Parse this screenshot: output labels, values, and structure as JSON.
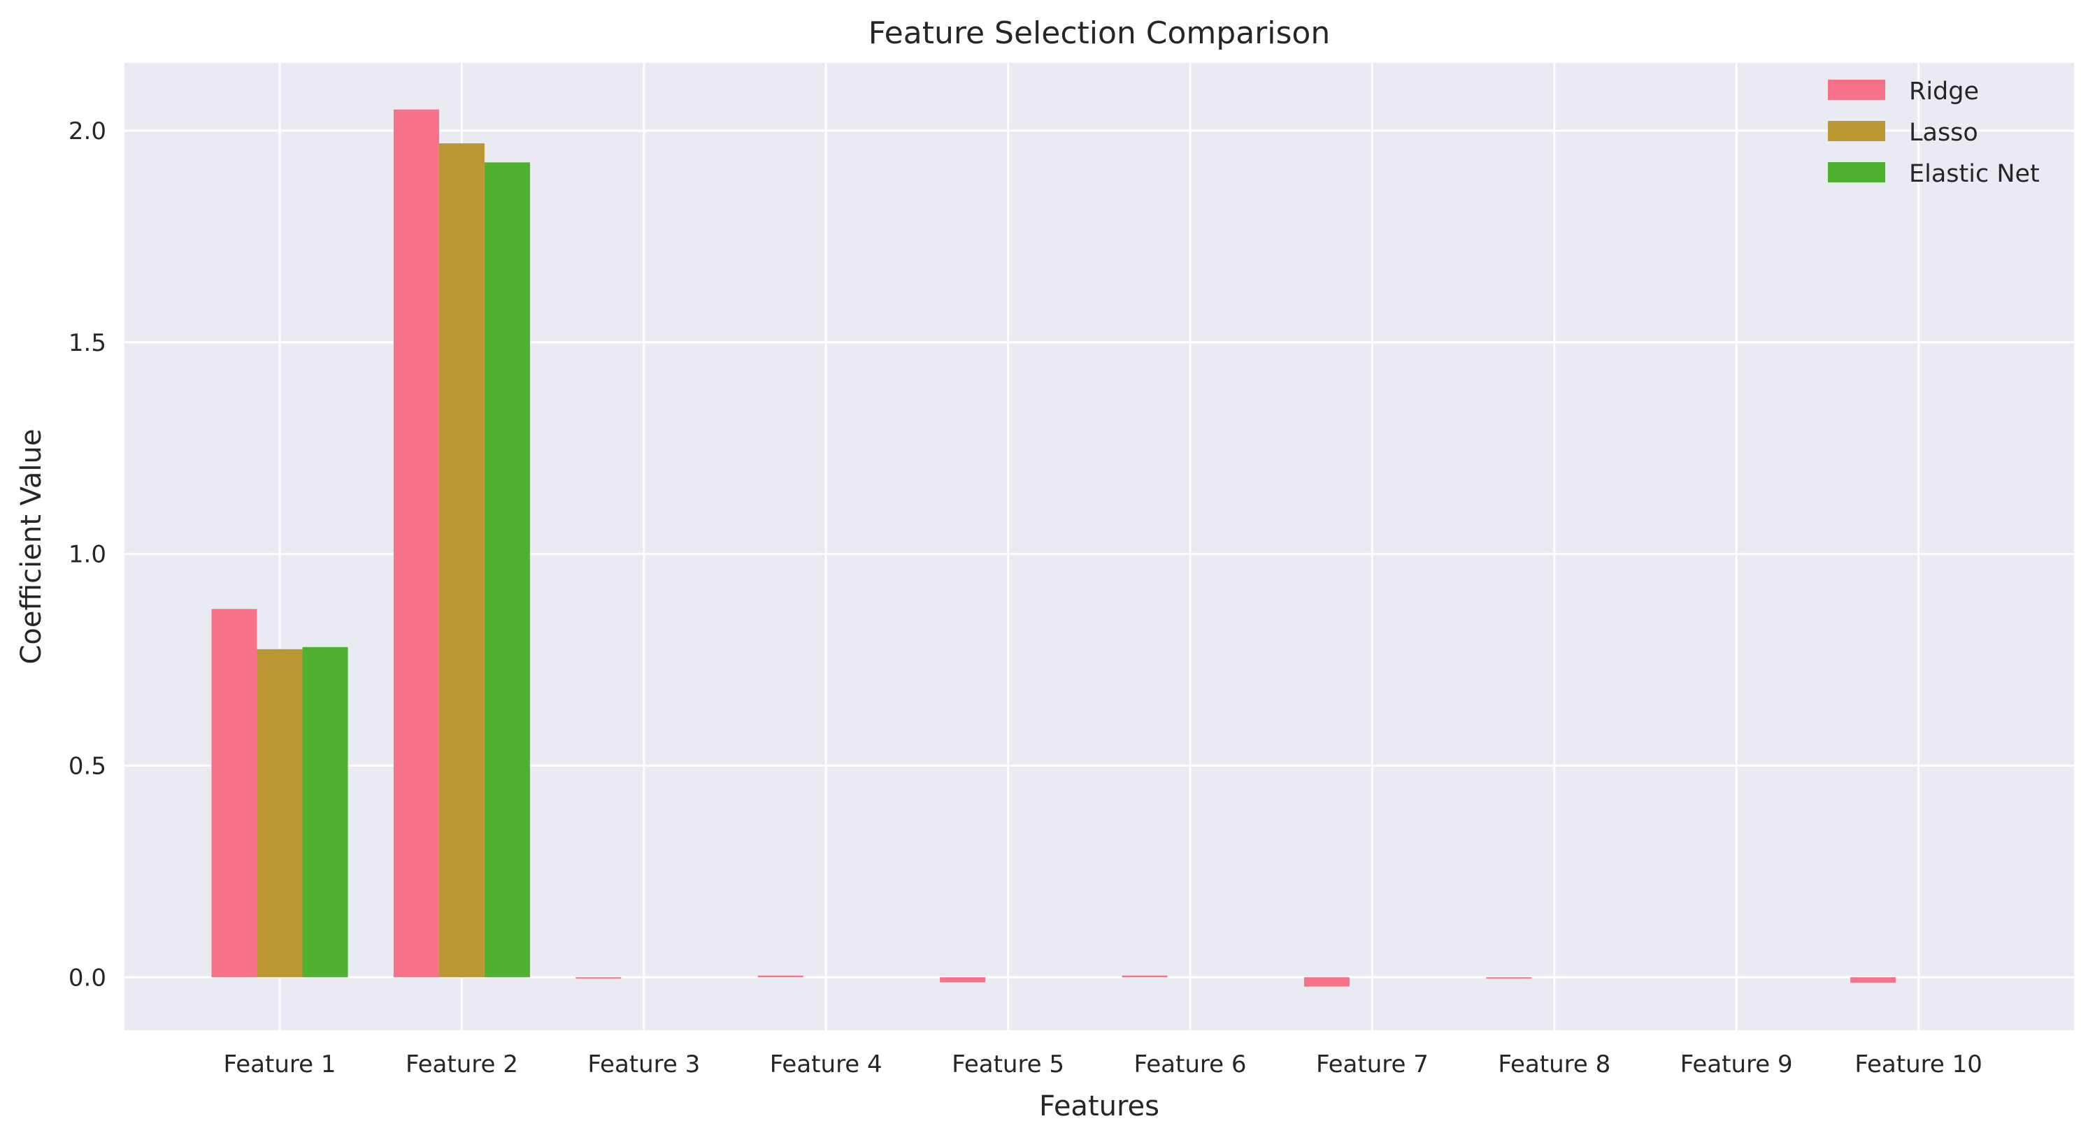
{
  "chart_data": {
    "type": "bar",
    "title": "Feature Selection Comparison",
    "xlabel": "Features",
    "ylabel": "Coefficient Value",
    "categories": [
      "Feature 1",
      "Feature 2",
      "Feature 3",
      "Feature 4",
      "Feature 5",
      "Feature 6",
      "Feature 7",
      "Feature 8",
      "Feature 9",
      "Feature 10"
    ],
    "series": [
      {
        "name": "Ridge",
        "color": "#f77189",
        "values": [
          0.87,
          2.05,
          -0.003,
          0.004,
          -0.012,
          0.004,
          -0.022,
          -0.002,
          0.0,
          -0.013
        ]
      },
      {
        "name": "Lasso",
        "color": "#bb9832",
        "values": [
          0.775,
          1.97,
          0.0,
          0.0,
          0.0,
          0.0,
          0.0,
          0.0,
          0.0,
          0.0
        ]
      },
      {
        "name": "Elastic Net",
        "color": "#50b131",
        "values": [
          0.78,
          1.925,
          0.0,
          0.0,
          0.0,
          0.0,
          0.0,
          0.0,
          0.0,
          0.0
        ]
      }
    ],
    "yticks": [
      "0.0",
      "0.5",
      "1.0",
      "1.5",
      "2.0"
    ],
    "ylim": [
      -0.125,
      2.16
    ],
    "grid": true,
    "legend_position": "top-right",
    "background_color": "#eaeaf2",
    "grid_color": "#ffffff"
  }
}
